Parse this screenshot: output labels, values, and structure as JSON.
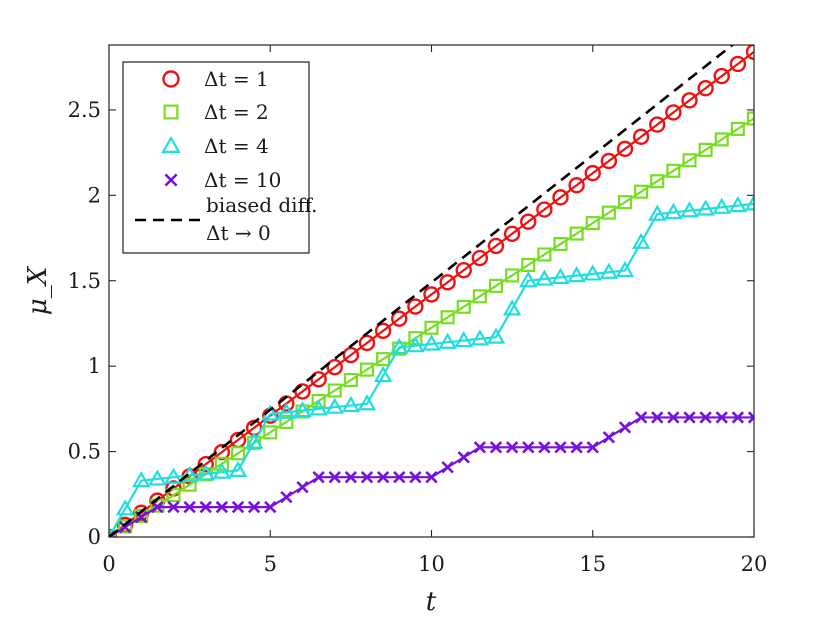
{
  "chart_data": {
    "type": "line",
    "title": "",
    "xlabel": "t",
    "ylabel": "μ_X",
    "xlim": [
      0,
      20
    ],
    "ylim": [
      0,
      2.88
    ],
    "x_ticks": [
      0,
      5,
      10,
      15,
      20
    ],
    "x_tick_labels": [
      "0",
      "5",
      "10",
      "15",
      "20"
    ],
    "y_ticks": [
      0,
      0.5,
      1,
      1.5,
      2,
      2.5
    ],
    "y_tick_labels": [
      "0",
      "0.5",
      "1",
      "1.5",
      "2",
      "2.5"
    ],
    "grid": false,
    "legend_position": "top-left",
    "series": [
      {
        "name": "Δt = 1",
        "legend_label": "Δt = 1",
        "marker": "circle",
        "color": "#ee1111",
        "model": {
          "kind": "linear",
          "slope": 0.142,
          "t_end": 20,
          "step": 0.5
        }
      },
      {
        "name": "Δt = 2",
        "legend_label": "Δt = 2",
        "marker": "square",
        "color": "#77dd22",
        "model": {
          "kind": "linear",
          "slope": 0.1225,
          "t_end": 20,
          "step": 0.5
        }
      },
      {
        "name": "Δt = 4",
        "legend_label": "Δt = 4",
        "marker": "triangle",
        "color": "#22dddd",
        "model": {
          "kind": "staircase",
          "period": 4,
          "rise": 0.33,
          "plateau_slope": 0.02,
          "ramp": 1.0,
          "t_end": 20,
          "step": 0.5
        }
      },
      {
        "name": "Δt = 10",
        "legend_label": "Δt = 10",
        "marker": "x",
        "color": "#7711dd",
        "model": {
          "kind": "staircase",
          "period": 5,
          "rise": 0.175,
          "plateau_slope": 0.0,
          "ramp": 1.5,
          "t_end": 20,
          "step": 0.5
        }
      },
      {
        "name": "biased diff. Δt → 0",
        "legend_label_lines": [
          "biased diff.",
          "Δt → 0"
        ],
        "marker": "none",
        "line_style": "dashed",
        "color": "#000000",
        "model": {
          "kind": "linear",
          "slope": 0.149,
          "t_end": 20,
          "step": 0.5
        }
      }
    ]
  }
}
